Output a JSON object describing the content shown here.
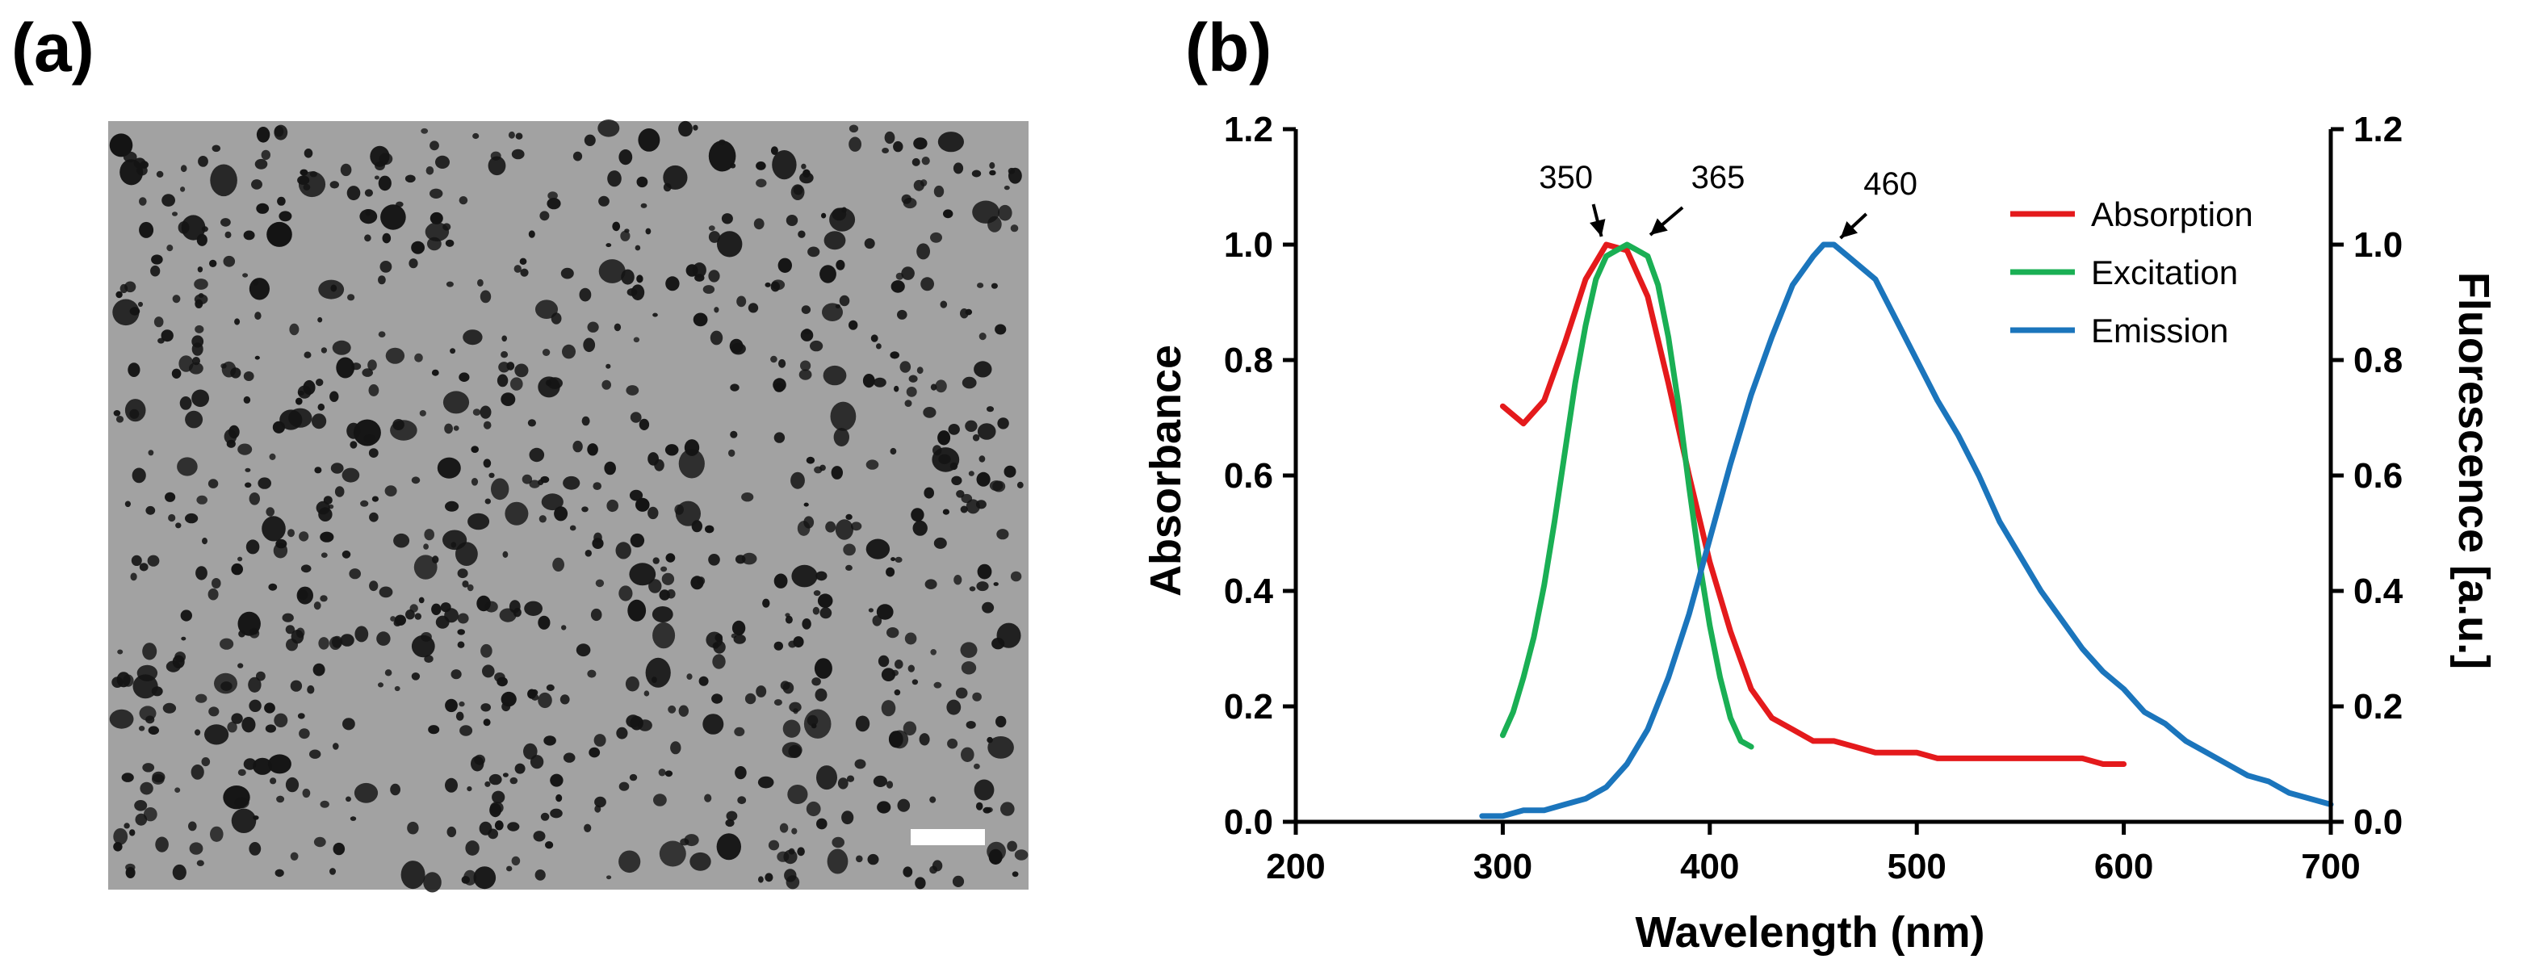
{
  "panels": {
    "a_label": "(a)",
    "b_label": "(b)"
  },
  "micrograph": {
    "background_color": "#a2a2a2",
    "particle_color": "#141414",
    "scale_bar_color": "#ffffff"
  },
  "chart_data": {
    "type": "line",
    "title": "",
    "xlabel": "Wavelength (nm)",
    "ylabel_left": "Absorbance",
    "ylabel_right": "Fluorescence [a.u.]",
    "xlim": [
      200,
      700
    ],
    "ylim": [
      0,
      1.2
    ],
    "x_ticks": [
      200,
      300,
      400,
      500,
      600,
      700
    ],
    "x_tick_labels": [
      "200",
      "300",
      "400",
      "500",
      "600",
      "700"
    ],
    "y_ticks": [
      0,
      0.2,
      0.4,
      0.6,
      0.8,
      1.0,
      1.2
    ],
    "y_tick_labels": [
      "0.0",
      "0.2",
      "0.4",
      "0.6",
      "0.8",
      "1.0",
      "1.2"
    ],
    "legend_position": "top-right",
    "grid": false,
    "series": [
      {
        "name": "Absorption",
        "color": "#e41a1c",
        "x": [
          300,
          310,
          320,
          330,
          340,
          350,
          360,
          370,
          380,
          390,
          400,
          410,
          420,
          430,
          440,
          450,
          460,
          470,
          480,
          490,
          500,
          510,
          520,
          530,
          540,
          550,
          560,
          570,
          580,
          590,
          600
        ],
        "y": [
          0.72,
          0.69,
          0.73,
          0.83,
          0.94,
          1.0,
          0.99,
          0.91,
          0.76,
          0.6,
          0.45,
          0.33,
          0.23,
          0.18,
          0.16,
          0.14,
          0.14,
          0.13,
          0.12,
          0.12,
          0.12,
          0.11,
          0.11,
          0.11,
          0.11,
          0.11,
          0.11,
          0.11,
          0.11,
          0.1,
          0.1
        ]
      },
      {
        "name": "Excitation",
        "color": "#1aaf54",
        "x": [
          300,
          305,
          310,
          315,
          320,
          325,
          330,
          335,
          340,
          345,
          350,
          355,
          360,
          365,
          370,
          375,
          380,
          385,
          390,
          395,
          400,
          405,
          410,
          415,
          420
        ],
        "y": [
          0.15,
          0.19,
          0.25,
          0.32,
          0.41,
          0.52,
          0.64,
          0.76,
          0.86,
          0.94,
          0.98,
          0.99,
          1.0,
          0.99,
          0.98,
          0.93,
          0.84,
          0.72,
          0.58,
          0.45,
          0.34,
          0.25,
          0.18,
          0.14,
          0.13
        ]
      },
      {
        "name": "Emission",
        "color": "#1b75bc",
        "x": [
          290,
          300,
          310,
          320,
          330,
          340,
          350,
          360,
          370,
          380,
          390,
          400,
          410,
          420,
          430,
          440,
          450,
          455,
          460,
          470,
          480,
          490,
          500,
          510,
          520,
          530,
          540,
          550,
          560,
          570,
          580,
          590,
          600,
          610,
          620,
          630,
          640,
          650,
          660,
          670,
          680,
          690,
          700
        ],
        "y": [
          0.01,
          0.01,
          0.02,
          0.02,
          0.03,
          0.04,
          0.06,
          0.1,
          0.16,
          0.25,
          0.36,
          0.49,
          0.62,
          0.74,
          0.84,
          0.93,
          0.98,
          1.0,
          1.0,
          0.97,
          0.94,
          0.87,
          0.8,
          0.73,
          0.67,
          0.6,
          0.52,
          0.46,
          0.4,
          0.35,
          0.3,
          0.26,
          0.23,
          0.19,
          0.17,
          0.14,
          0.12,
          0.1,
          0.08,
          0.07,
          0.05,
          0.04,
          0.03
        ]
      }
    ],
    "annotations": [
      {
        "text": "350",
        "x": 350,
        "y": 1.0
      },
      {
        "text": "365",
        "x": 365,
        "y": 1.0
      },
      {
        "text": "460",
        "x": 460,
        "y": 1.0
      }
    ]
  }
}
